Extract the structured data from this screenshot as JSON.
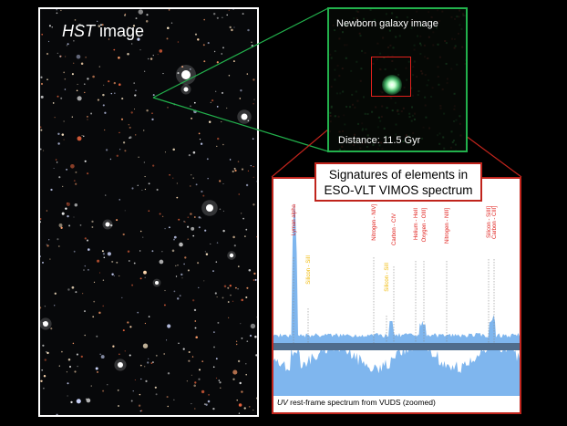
{
  "hst": {
    "label_italic": "HST",
    "label_rest": " image"
  },
  "galaxy": {
    "label": "Newborn galaxy image",
    "distance_label": "Distance: 11.5 Gyr"
  },
  "spectrum": {
    "title_line1": "Signatures of elements in",
    "title_line2": "ESO-VLT VIMOS spectrum",
    "caption_italic": "UV",
    "caption_rest": " rest-frame spectrum from VUDS (zoomed)",
    "lines": [
      {
        "label": "Lyman alpha",
        "color": "#e0201c"
      },
      {
        "label": "Silicon - SiII",
        "color": "#f0b800"
      },
      {
        "label": "Nitrogen - NIV]",
        "color": "#e0201c"
      },
      {
        "label": "Silicon - SiII",
        "color": "#f0b800"
      },
      {
        "label": "Carbon - CIV",
        "color": "#e0201c"
      },
      {
        "label": "Helium - HeII",
        "color": "#e0201c"
      },
      {
        "label": "Oxygen - OIII]",
        "color": "#e0201c"
      },
      {
        "label": "Nitrogen - NIII]",
        "color": "#e0201c"
      },
      {
        "label": "Silicon - SiIII]",
        "color": "#e0201c"
      },
      {
        "label": "Carbon - CIII]",
        "color": "#e0201c"
      }
    ]
  },
  "colors": {
    "hst_border": "#ffffff",
    "galaxy_border": "#22b14c",
    "connector_green": "#22b14c",
    "connector_red": "#c0241c",
    "spectrum_fill": "#7fb6ee"
  }
}
